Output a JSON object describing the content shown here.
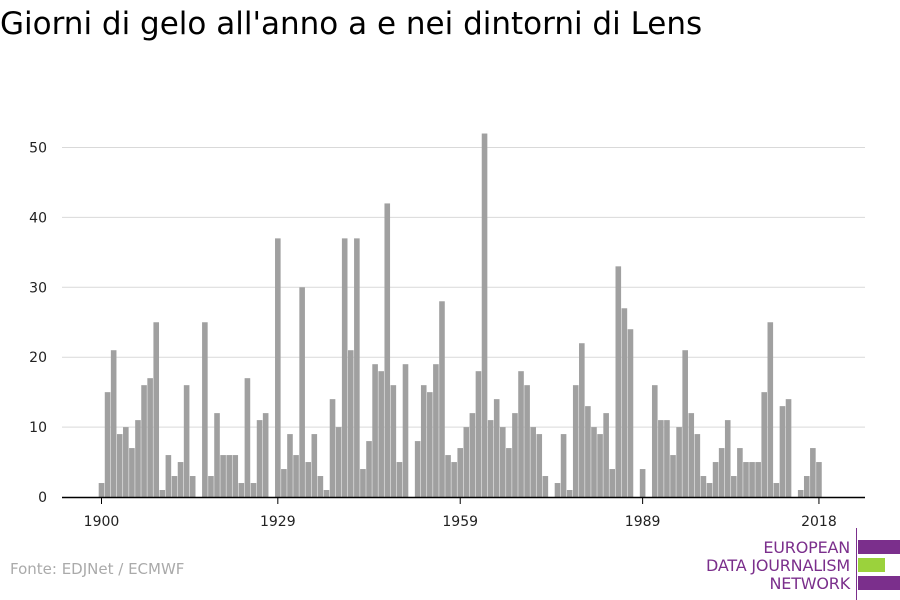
{
  "title": "Giorni di gelo all'anno a e nei dintorni di Lens",
  "source": "Fonte: EDJNet / ECMWF",
  "logo": {
    "lines": [
      "EUROPEAN",
      "DATA JOURNALISM",
      "NETWORK"
    ],
    "colors": {
      "purple": "#7b2f8c",
      "green": "#9bd23c"
    }
  },
  "colors": {
    "bar": "#a0a0a0",
    "grid": "#d9d9d9",
    "axis": "#000000"
  },
  "chart_data": {
    "type": "bar",
    "title": "Giorni di gelo all'anno a e nei dintorni di Lens",
    "xlabel": "",
    "ylabel": "",
    "x_ticks": [
      1900,
      1929,
      1959,
      1989,
      2018
    ],
    "y_ticks": [
      0,
      10,
      20,
      30,
      40,
      50
    ],
    "xlim": [
      1900,
      2018
    ],
    "ylim": [
      0,
      55
    ],
    "grid": true,
    "years": [
      1900,
      1901,
      1902,
      1903,
      1904,
      1905,
      1906,
      1907,
      1908,
      1909,
      1910,
      1911,
      1912,
      1913,
      1914,
      1915,
      1916,
      1917,
      1918,
      1919,
      1920,
      1921,
      1922,
      1923,
      1924,
      1925,
      1926,
      1927,
      1928,
      1929,
      1930,
      1931,
      1932,
      1933,
      1934,
      1935,
      1936,
      1937,
      1938,
      1939,
      1940,
      1941,
      1942,
      1943,
      1944,
      1945,
      1946,
      1947,
      1948,
      1949,
      1950,
      1951,
      1952,
      1953,
      1954,
      1955,
      1956,
      1957,
      1958,
      1959,
      1960,
      1961,
      1962,
      1963,
      1964,
      1965,
      1966,
      1967,
      1968,
      1969,
      1970,
      1971,
      1972,
      1973,
      1974,
      1975,
      1976,
      1977,
      1978,
      1979,
      1980,
      1981,
      1982,
      1983,
      1984,
      1985,
      1986,
      1987,
      1988,
      1989,
      1990,
      1991,
      1992,
      1993,
      1994,
      1995,
      1996,
      1997,
      1998,
      1999,
      2000,
      2001,
      2002,
      2003,
      2004,
      2005,
      2006,
      2007,
      2008,
      2009,
      2010,
      2011,
      2012,
      2013,
      2014,
      2015,
      2016,
      2017,
      2018
    ],
    "values": [
      2,
      15,
      21,
      9,
      10,
      7,
      11,
      16,
      17,
      25,
      1,
      6,
      3,
      5,
      16,
      3,
      0,
      25,
      3,
      12,
      6,
      6,
      6,
      2,
      17,
      2,
      11,
      12,
      0,
      37,
      4,
      9,
      6,
      30,
      5,
      9,
      3,
      1,
      14,
      10,
      37,
      21,
      37,
      4,
      8,
      19,
      18,
      42,
      16,
      5,
      19,
      0,
      8,
      16,
      15,
      19,
      28,
      6,
      5,
      7,
      10,
      12,
      18,
      52,
      11,
      14,
      10,
      7,
      12,
      18,
      16,
      10,
      9,
      3,
      0,
      2,
      9,
      1,
      16,
      22,
      13,
      10,
      9,
      12,
      4,
      33,
      27,
      24,
      0,
      4,
      0,
      16,
      11,
      11,
      6,
      10,
      21,
      12,
      9,
      3,
      2,
      5,
      7,
      11,
      3,
      7,
      5,
      5,
      5,
      15,
      25,
      2,
      13,
      14,
      0,
      1,
      3,
      7,
      5
    ]
  }
}
